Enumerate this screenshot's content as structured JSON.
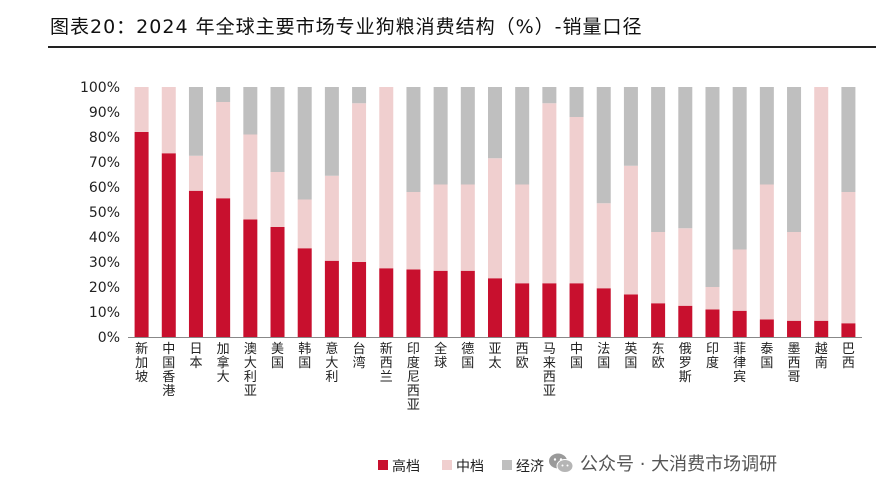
{
  "title": "图表20：2024 年全球主要市场专业狗粮消费结构（%）-销量口径",
  "watermark": {
    "icon": "wechat-icon",
    "text": "公众号 · 大消费市场调研"
  },
  "chart_data": {
    "type": "bar",
    "stacked": true,
    "categories": [
      "新加坡",
      "中国香港",
      "日本",
      "加拿大",
      "澳大利亚",
      "美国",
      "韩国",
      "意大利",
      "台湾",
      "新西兰",
      "印度尼西亚",
      "全球",
      "德国",
      "亚太",
      "西欧",
      "马来西亚",
      "中国",
      "法国",
      "英国",
      "东欧",
      "俄罗斯",
      "印度",
      "菲律宾",
      "泰国",
      "墨西哥",
      "越南",
      "巴西"
    ],
    "series": [
      {
        "name": "高档",
        "color": "#C8102E",
        "values": [
          82,
          73.5,
          58.5,
          55.5,
          47,
          44,
          35.5,
          30.5,
          30,
          27.5,
          27,
          26.5,
          26.5,
          23.5,
          21.5,
          21.5,
          21.5,
          19.5,
          17,
          13.5,
          12.5,
          11,
          10.5,
          7,
          6.5,
          6.5,
          5.5
        ]
      },
      {
        "name": "中档",
        "color": "#F0CFCF",
        "values": [
          18,
          26.5,
          14,
          38.5,
          34,
          22,
          19.5,
          34,
          63.5,
          72.5,
          31,
          34.5,
          34.5,
          48,
          39.5,
          72,
          66.5,
          34,
          51.5,
          28.5,
          31,
          9,
          24.5,
          54,
          35.5,
          93.5,
          52.5
        ]
      },
      {
        "name": "经济",
        "color": "#BFBFBF",
        "values": [
          0,
          0,
          27.5,
          6,
          19,
          34,
          45,
          35.5,
          6.5,
          0,
          42,
          39,
          39,
          28.5,
          39,
          6.5,
          12,
          46.5,
          31.5,
          58,
          56.5,
          80,
          65,
          39,
          58,
          0,
          42
        ]
      }
    ],
    "yticks": [
      "0%",
      "10%",
      "20%",
      "30%",
      "40%",
      "50%",
      "60%",
      "70%",
      "80%",
      "90%",
      "100%"
    ],
    "ylim": [
      0,
      100
    ],
    "legend_position": "bottom-center"
  }
}
